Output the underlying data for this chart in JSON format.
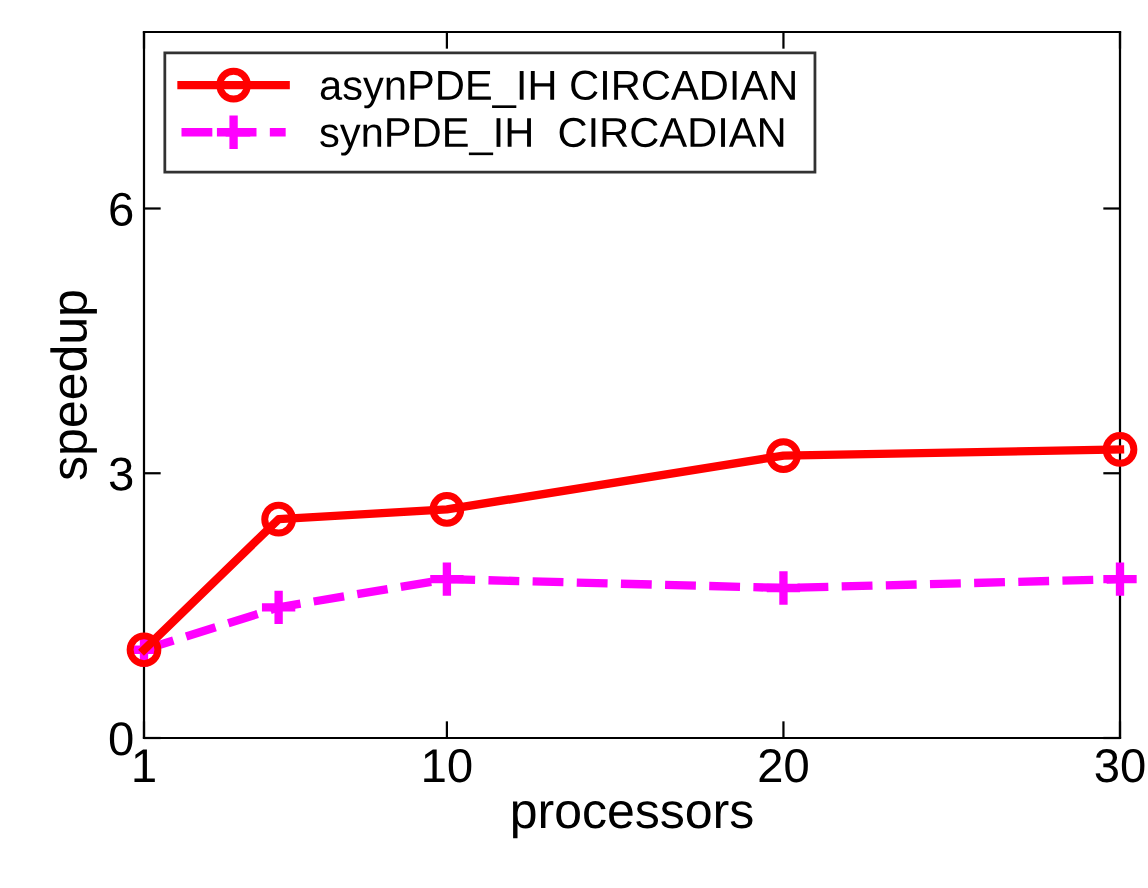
{
  "chart_data": {
    "type": "line",
    "xlabel": "processors",
    "ylabel": "speedup",
    "x": [
      1,
      5,
      10,
      20,
      30
    ],
    "xlim": [
      1,
      30
    ],
    "xticks": [
      1,
      10,
      20,
      30
    ],
    "ylim": [
      0,
      8
    ],
    "yticks": [
      0,
      3,
      6
    ],
    "legend": "top left",
    "grid": false,
    "series": [
      {
        "name": "asynPDE_IH CIRCADIAN",
        "color": "#ff0000",
        "values": [
          1.0,
          2.48,
          2.59,
          3.2,
          3.27
        ],
        "marker": "circle",
        "line_style": "solid"
      },
      {
        "name": "synPDE_IH  CIRCADIAN",
        "color": "#ff00ff",
        "values": [
          1.0,
          1.48,
          1.8,
          1.7,
          1.8
        ],
        "marker": "cross",
        "line_style": "dashed"
      }
    ]
  }
}
